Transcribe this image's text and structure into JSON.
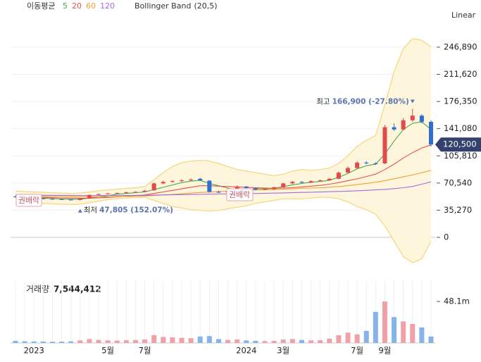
{
  "chart_data": [
    {
      "type": "candlestick",
      "legend_title": "이동평균",
      "scale": "Linear",
      "up_color": "#e34a4a",
      "down_color": "#2e6fd1",
      "open": [
        53000,
        52000,
        51500,
        50500,
        50000,
        49500,
        49000,
        48500,
        50500,
        55000,
        56000,
        57000,
        57500,
        58500,
        59000,
        61000,
        70000,
        72000,
        73000,
        74000,
        76000,
        73500,
        59000,
        58500,
        60000,
        66000,
        64000,
        62000,
        62500,
        65000,
        70000,
        72000,
        71000,
        73000,
        74000,
        76000,
        84000,
        90000,
        97000,
        96000,
        96000,
        143000,
        140000,
        152000,
        158000,
        150000
      ],
      "high": [
        54000,
        53000,
        52000,
        51500,
        50800,
        50200,
        49800,
        50800,
        55800,
        56800,
        57800,
        58300,
        59300,
        59800,
        61500,
        71500,
        73500,
        74500,
        75500,
        76500,
        77500,
        74500,
        60500,
        61000,
        67500,
        66500,
        64500,
        63500,
        65500,
        71000,
        73500,
        73000,
        74000,
        75000,
        77000,
        85500,
        92000,
        99000,
        99000,
        97500,
        146000,
        148000,
        155000,
        166900,
        160000,
        152000
      ],
      "low": [
        51500,
        51000,
        50000,
        49500,
        49000,
        48500,
        48000,
        47805,
        50000,
        54500,
        55500,
        56500,
        57000,
        58000,
        58500,
        60500,
        69000,
        71000,
        72000,
        73000,
        73500,
        58000,
        57500,
        58000,
        59500,
        63500,
        61000,
        61500,
        62000,
        64500,
        69000,
        70500,
        70500,
        72500,
        73500,
        75500,
        83000,
        89000,
        95000,
        94000,
        95000,
        138000,
        139000,
        150000,
        148000,
        118000
      ],
      "close": [
        52000,
        51500,
        50500,
        50000,
        49500,
        49000,
        48500,
        50500,
        55000,
        56000,
        57000,
        57500,
        58500,
        59000,
        60500,
        70000,
        72000,
        73000,
        74000,
        75000,
        74000,
        59000,
        58500,
        60000,
        66000,
        64000,
        62000,
        62500,
        65000,
        70000,
        72000,
        71000,
        73000,
        74000,
        76000,
        84000,
        90000,
        97000,
        96000,
        95000,
        143000,
        140000,
        152000,
        158000,
        150000,
        120500
      ],
      "series": [
        {
          "name": "5",
          "color": "#4aa84a",
          "values": [
            52000,
            51800,
            51200,
            50800,
            50300,
            49800,
            49300,
            49500,
            51000,
            52500,
            54000,
            56000,
            57000,
            58000,
            59000,
            62000,
            65000,
            68000,
            71000,
            73000,
            74000,
            70000,
            67000,
            64000,
            61000,
            62000,
            63000,
            63000,
            63500,
            66000,
            68000,
            70000,
            71500,
            72500,
            74000,
            78000,
            83000,
            89000,
            93000,
            95000,
            108000,
            125000,
            140000,
            148000,
            150000,
            140000
          ]
        },
        {
          "name": "20",
          "color": "#e5534b",
          "values": [
            52500,
            52300,
            52000,
            51800,
            51500,
            51200,
            50900,
            50700,
            50800,
            51200,
            51800,
            52500,
            53300,
            54000,
            55000,
            57000,
            59000,
            61000,
            63000,
            65000,
            67000,
            67000,
            66500,
            66000,
            65500,
            65000,
            64500,
            64000,
            63500,
            64000,
            64500,
            65500,
            66500,
            67500,
            69000,
            71000,
            73500,
            76000,
            79000,
            82000,
            88000,
            95000,
            103000,
            110000,
            116000,
            120000
          ]
        },
        {
          "name": "60",
          "color": "#f0a03c",
          "values": [
            54000,
            53800,
            53600,
            53400,
            53200,
            53000,
            52800,
            52600,
            52500,
            52500,
            52600,
            52800,
            53000,
            53300,
            53700,
            54300,
            55000,
            55800,
            56600,
            57400,
            58200,
            58800,
            59300,
            59800,
            60300,
            60800,
            61300,
            61700,
            62100,
            62500,
            63000,
            63500,
            64000,
            64500,
            65000,
            66000,
            67000,
            68500,
            70000,
            71500,
            73500,
            76000,
            78500,
            81000,
            84000,
            87000
          ]
        },
        {
          "name": "120",
          "color": "#a26be0",
          "values": [
            55000,
            54900,
            54800,
            54700,
            54600,
            54500,
            54400,
            54300,
            54200,
            54200,
            54200,
            54300,
            54400,
            54500,
            54600,
            54800,
            55000,
            55200,
            55400,
            55600,
            55800,
            56000,
            56200,
            56400,
            56600,
            56800,
            57000,
            57200,
            57400,
            57700,
            58000,
            58300,
            58600,
            58900,
            59200,
            59600,
            60000,
            60500,
            61000,
            61600,
            62300,
            63300,
            64500,
            66000,
            69000,
            72000
          ]
        }
      ],
      "band": {
        "name": "Bollinger Band",
        "params": "(20,5)",
        "color": "#f5d77a",
        "fill": "#fdf5dc",
        "upper": [
          60000,
          59500,
          59000,
          58500,
          58000,
          57500,
          57000,
          57500,
          59000,
          60500,
          61500,
          62500,
          63500,
          64500,
          66000,
          75000,
          84000,
          92000,
          97000,
          99000,
          100000,
          99000,
          96000,
          92000,
          88000,
          86000,
          84000,
          82000,
          80000,
          82000,
          86000,
          88000,
          87000,
          88000,
          90000,
          96000,
          106000,
          118000,
          126000,
          132000,
          172000,
          215000,
          245000,
          258000,
          256000,
          247000
        ],
        "lower": [
          43000,
          43500,
          44000,
          44000,
          43500,
          43000,
          42500,
          43000,
          45000,
          47000,
          49000,
          50000,
          51000,
          51500,
          52000,
          48000,
          44000,
          40000,
          38000,
          36000,
          35000,
          34000,
          35000,
          37000,
          39000,
          41000,
          44000,
          46000,
          48000,
          50000,
          50000,
          50000,
          51000,
          52000,
          52000,
          50000,
          46000,
          40000,
          36000,
          30000,
          15000,
          -5000,
          -25000,
          -33000,
          -28000,
          -5000
        ]
      },
      "ylim": [
        -43900,
        289850
      ],
      "yticks": [
        0,
        {
          "value": 35270,
          "label": "35,270"
        },
        {
          "value": 70540,
          "label": "70,540"
        },
        {
          "value": 105810,
          "label": "105,810"
        },
        {
          "value": 141080,
          "label": "141,080"
        },
        {
          "value": 176350,
          "label": "176,350"
        },
        {
          "value": 211620,
          "label": "211,620"
        },
        {
          "value": 246890,
          "label": "246,890"
        }
      ],
      "grid": true,
      "last_price": {
        "value": 120500,
        "label": "120,500"
      },
      "max_annotation": {
        "label": "최고",
        "value": 166900,
        "value_label": "166,900 (-27.80%)"
      },
      "min_annotation": {
        "label": "최저",
        "value": 47805,
        "value_label": "47,805 (152.07%)"
      },
      "events": [
        "권배락",
        "권배락"
      ]
    },
    {
      "type": "bar",
      "title": "거래량",
      "last_label": "7,544,412",
      "up_color": "#f0a0a6",
      "down_color": "#86b3ea",
      "categories": [
        null,
        null,
        "2023",
        null,
        null,
        null,
        null,
        null,
        null,
        null,
        "5월",
        null,
        null,
        null,
        "7월",
        null,
        null,
        null,
        null,
        null,
        null,
        null,
        null,
        null,
        null,
        "2024",
        null,
        null,
        null,
        "3월",
        null,
        null,
        null,
        null,
        null,
        null,
        null,
        "7월",
        null,
        null,
        "9월",
        null,
        null,
        null,
        null,
        null
      ],
      "values": [
        2500000,
        2000000,
        1800000,
        1700000,
        1500000,
        1600000,
        1900000,
        3000000,
        4500000,
        3500000,
        3000000,
        2800000,
        3200000,
        3500000,
        4000000,
        9000000,
        7000000,
        6500000,
        6000000,
        5500000,
        7500000,
        8000000,
        4500000,
        3500000,
        4000000,
        3000000,
        2500000,
        2200000,
        2500000,
        4000000,
        4500000,
        3500000,
        3000000,
        3200000,
        5000000,
        9000000,
        12000000,
        10000000,
        14000000,
        36000000,
        48000000,
        30000000,
        25000000,
        22000000,
        18000000,
        7544412
      ],
      "ylim": [
        0,
        72600000
      ],
      "yticks": [
        {
          "value": 48100000,
          "label": "48.1m"
        }
      ]
    }
  ]
}
